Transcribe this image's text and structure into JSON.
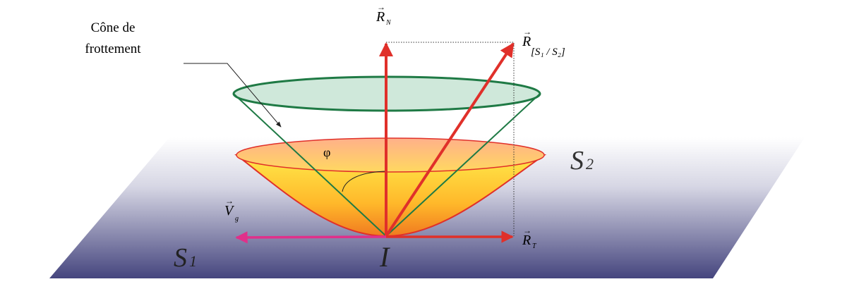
{
  "labels": {
    "cone_line1": "Cône de",
    "cone_line2": "frottement",
    "rn": "R",
    "rn_sub": "N",
    "r_result": "R",
    "r_result_sub": "[S₁ / S₂]",
    "rt": "R",
    "rt_sub": "T",
    "vg": "V",
    "vg_sub": "g",
    "phi": "φ",
    "s1": "S",
    "s1_sub": "1",
    "s2": "S",
    "s2_sub": "2",
    "point_i": "I"
  },
  "colors": {
    "force_arrow": "#e0302a",
    "velocity_arrow": "#e0308a",
    "friction_cone": "#1f7a45",
    "cone_fill": "#cfe8da",
    "plane_dark": "#45457e"
  }
}
